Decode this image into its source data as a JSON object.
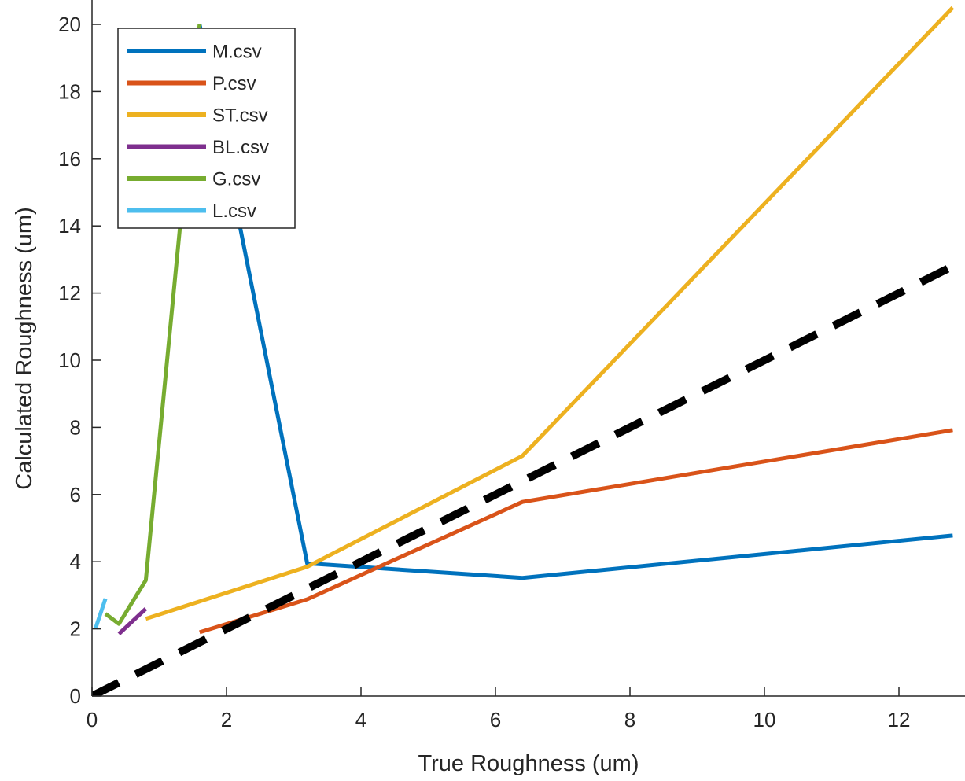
{
  "chart_data": {
    "type": "line",
    "title": "",
    "xlabel": "True Roughness (um)",
    "ylabel": "Calculated Roughness (um)",
    "xlim": [
      0,
      12.9
    ],
    "ylim": [
      0,
      20.6
    ],
    "xticks": [
      0,
      2,
      4,
      6,
      8,
      10,
      12
    ],
    "yticks": [
      0,
      2,
      4,
      6,
      8,
      10,
      12,
      14,
      16,
      18,
      20
    ],
    "grid": false,
    "legend_position": "top-left",
    "series": [
      {
        "name": "M.csv",
        "color": "#0072BD",
        "style": "solid",
        "x": [
          1.6,
          3.2,
          6.4,
          12.8
        ],
        "y": [
          20.0,
          3.95,
          3.52,
          4.78
        ]
      },
      {
        "name": "P.csv",
        "color": "#D95319",
        "style": "solid",
        "x": [
          1.6,
          3.2,
          6.4,
          12.8
        ],
        "y": [
          1.9,
          2.88,
          5.78,
          7.92
        ]
      },
      {
        "name": "ST.csv",
        "color": "#EDB120",
        "style": "solid",
        "x": [
          0.8,
          3.2,
          6.4,
          12.8
        ],
        "y": [
          2.3,
          3.85,
          7.15,
          20.5
        ]
      },
      {
        "name": "BL.csv",
        "color": "#7E2F8E",
        "style": "solid",
        "x": [
          0.4,
          0.8
        ],
        "y": [
          1.85,
          2.6
        ]
      },
      {
        "name": "G.csv",
        "color": "#77AC30",
        "style": "solid",
        "x": [
          0.2,
          0.4,
          0.8,
          1.6
        ],
        "y": [
          2.45,
          2.15,
          3.45,
          20.0
        ]
      },
      {
        "name": "L.csv",
        "color": "#4DBEEE",
        "style": "solid",
        "x": [
          0.05,
          0.2
        ],
        "y": [
          2.0,
          2.9
        ]
      },
      {
        "color": "#000000",
        "style": "dashed",
        "x": [
          0,
          12.9
        ],
        "y": [
          0,
          12.9
        ]
      }
    ]
  }
}
